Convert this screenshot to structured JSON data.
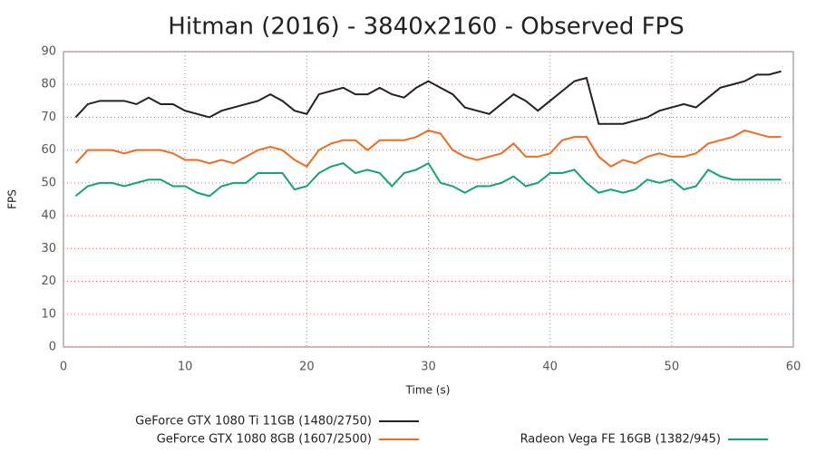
{
  "chart_data": {
    "type": "line",
    "title": "Hitman (2016) - 3840x2160 - Observed FPS",
    "x_label": "Time (s)",
    "y_label": "FPS",
    "x": [
      1,
      2,
      3,
      4,
      5,
      6,
      7,
      8,
      9,
      10,
      11,
      12,
      13,
      14,
      15,
      16,
      17,
      18,
      19,
      20,
      21,
      22,
      23,
      24,
      25,
      26,
      27,
      28,
      29,
      30,
      31,
      32,
      33,
      34,
      35,
      36,
      37,
      38,
      39,
      40,
      41,
      42,
      43,
      44,
      45,
      46,
      47,
      48,
      49,
      50,
      51,
      52,
      53,
      54,
      55,
      56,
      57,
      58,
      59
    ],
    "series": [
      {
        "name": "GeForce GTX 1080 Ti 11GB (1480/2750)",
        "color": "#222222",
        "values": [
          70,
          74,
          75,
          75,
          75,
          74,
          76,
          74,
          74,
          72,
          71,
          70,
          72,
          73,
          74,
          75,
          77,
          75,
          72,
          71,
          77,
          78,
          79,
          77,
          77,
          79,
          77,
          76,
          79,
          81,
          79,
          77,
          73,
          72,
          71,
          74,
          77,
          75,
          72,
          75,
          78,
          81,
          82,
          68,
          68,
          68,
          69,
          70,
          72,
          73,
          74,
          73,
          76,
          79,
          80,
          81,
          83,
          83,
          84
        ]
      },
      {
        "name": "GeForce GTX 1080 8GB (1607/2500)",
        "color": "#f26b21",
        "values": [
          56,
          60,
          60,
          60,
          59,
          60,
          60,
          60,
          59,
          57,
          57,
          56,
          57,
          56,
          58,
          60,
          61,
          60,
          57,
          55,
          60,
          62,
          63,
          63,
          60,
          63,
          63,
          63,
          64,
          66,
          65,
          60,
          58,
          57,
          58,
          59,
          62,
          58,
          58,
          59,
          63,
          64,
          64,
          58,
          55,
          57,
          56,
          58,
          59,
          58,
          58,
          59,
          62,
          63,
          64,
          66,
          65,
          64,
          64
        ]
      },
      {
        "name": "Radeon Vega FE 16GB (1382/945)",
        "color": "#12a37a",
        "values": [
          46,
          49,
          50,
          50,
          49,
          50,
          51,
          51,
          49,
          49,
          47,
          46,
          49,
          50,
          50,
          53,
          53,
          53,
          48,
          49,
          53,
          55,
          56,
          53,
          54,
          53,
          49,
          53,
          54,
          56,
          50,
          49,
          47,
          49,
          49,
          50,
          52,
          49,
          50,
          53,
          53,
          54,
          50,
          47,
          48,
          47,
          48,
          51,
          50,
          51,
          48,
          49,
          54,
          52,
          51,
          51,
          51,
          51,
          51
        ]
      }
    ],
    "xlim": [
      0,
      60
    ],
    "xticks": [
      0,
      10,
      20,
      30,
      40,
      50,
      60
    ],
    "ylim": [
      0,
      90
    ],
    "yticks": [
      0,
      10,
      20,
      30,
      40,
      50,
      60,
      70,
      80,
      90
    ],
    "grid": true
  }
}
